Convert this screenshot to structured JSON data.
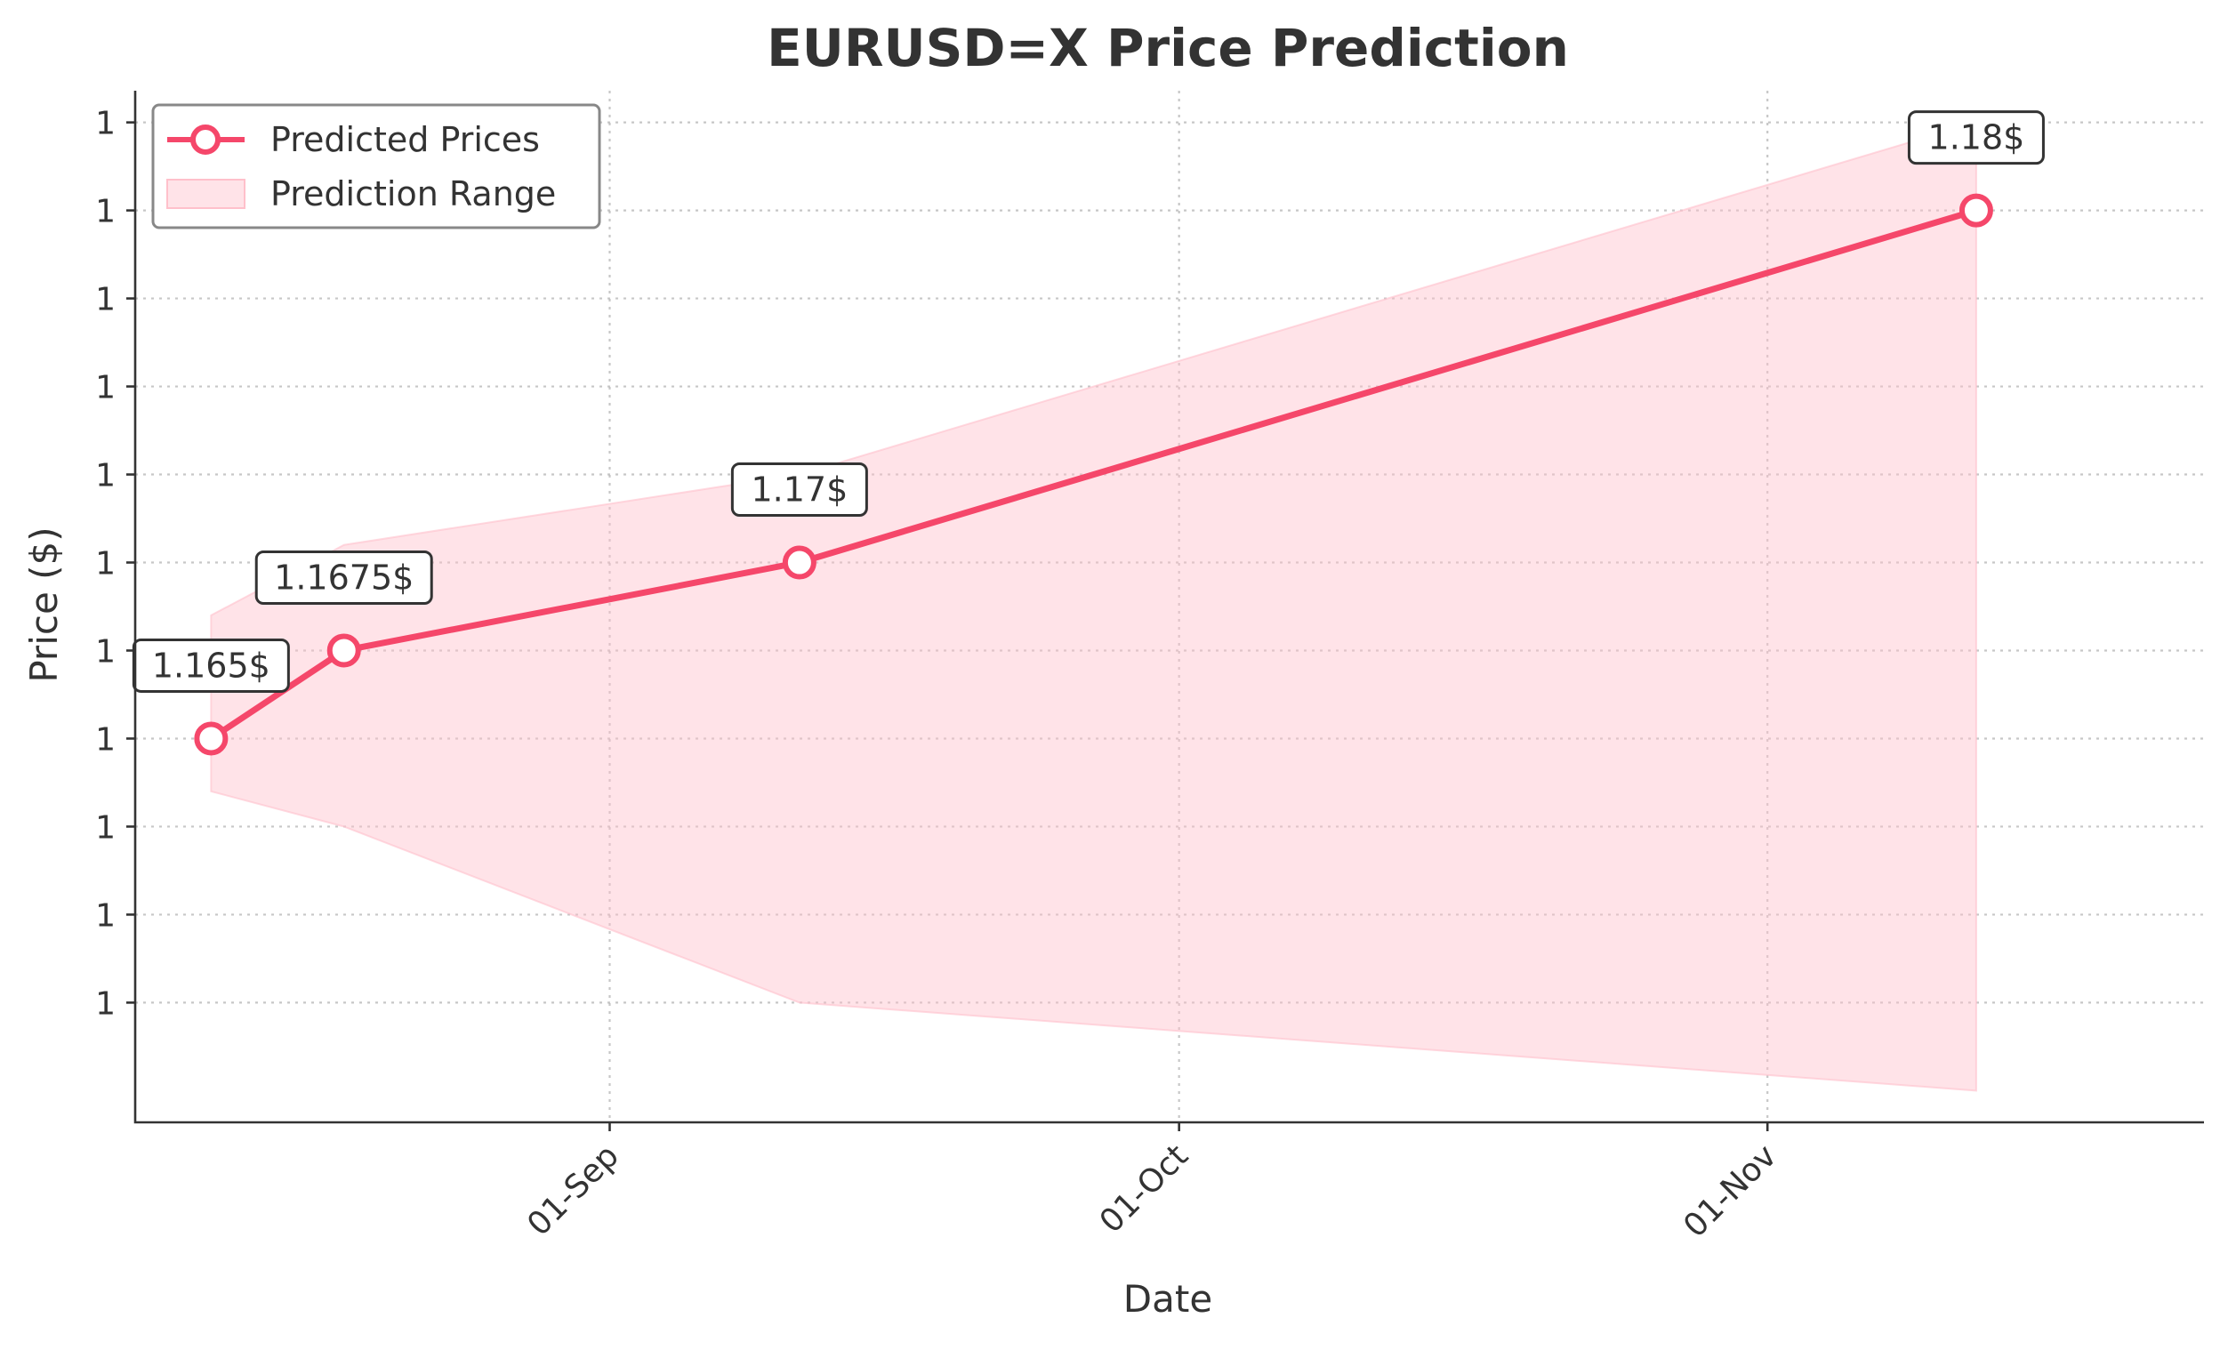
{
  "chart_data": {
    "type": "line",
    "title": "EURUSD=X Price Prediction",
    "xlabel": "Date",
    "ylabel": "Price ($)",
    "x_ticks": [
      {
        "date": "2025-09-01",
        "label": "01-Sep"
      },
      {
        "date": "2025-10-01",
        "label": "01-Oct"
      },
      {
        "date": "2025-11-01",
        "label": "01-Nov"
      }
    ],
    "y_ticks": [
      {
        "value": 1.1575,
        "label": "1"
      },
      {
        "value": 1.16,
        "label": "1"
      },
      {
        "value": 1.1625,
        "label": "1"
      },
      {
        "value": 1.165,
        "label": "1"
      },
      {
        "value": 1.1675,
        "label": "1"
      },
      {
        "value": 1.17,
        "label": "1"
      },
      {
        "value": 1.1725,
        "label": "1"
      },
      {
        "value": 1.175,
        "label": "1"
      },
      {
        "value": 1.1775,
        "label": "1"
      },
      {
        "value": 1.18,
        "label": "1"
      },
      {
        "value": 1.1825,
        "label": "1"
      },
      {
        "value": 1.185,
        "label": "1"
      }
    ],
    "xlim": [
      "2025-08-07",
      "2025-11-24"
    ],
    "ylim": [
      1.1541,
      1.1834
    ],
    "grid": true,
    "legend_position": "top-left",
    "series": [
      {
        "name": "Predicted Prices",
        "kind": "line",
        "color": "#f5476a",
        "points": [
          {
            "x": "2025-08-11",
            "y": 1.165
          },
          {
            "x": "2025-08-18",
            "y": 1.1675
          },
          {
            "x": "2025-09-11",
            "y": 1.17
          },
          {
            "x": "2025-11-12",
            "y": 1.18
          }
        ]
      },
      {
        "name": "Prediction Range",
        "kind": "band",
        "color": "#ffc0cb",
        "points": [
          {
            "x": "2025-08-11",
            "low": 1.1635,
            "high": 1.1685
          },
          {
            "x": "2025-08-18",
            "low": 1.1625,
            "high": 1.1705
          },
          {
            "x": "2025-09-11",
            "low": 1.1575,
            "high": 1.1725
          },
          {
            "x": "2025-11-12",
            "low": 1.155,
            "high": 1.1825
          }
        ]
      }
    ],
    "annotations": [
      {
        "x": "2025-08-11",
        "y": 1.165,
        "text": "1.165$"
      },
      {
        "x": "2025-08-18",
        "y": 1.1675,
        "text": "1.1675$"
      },
      {
        "x": "2025-09-11",
        "y": 1.17,
        "text": "1.17$"
      },
      {
        "x": "2025-11-12",
        "y": 1.18,
        "text": "1.18$"
      }
    ]
  }
}
